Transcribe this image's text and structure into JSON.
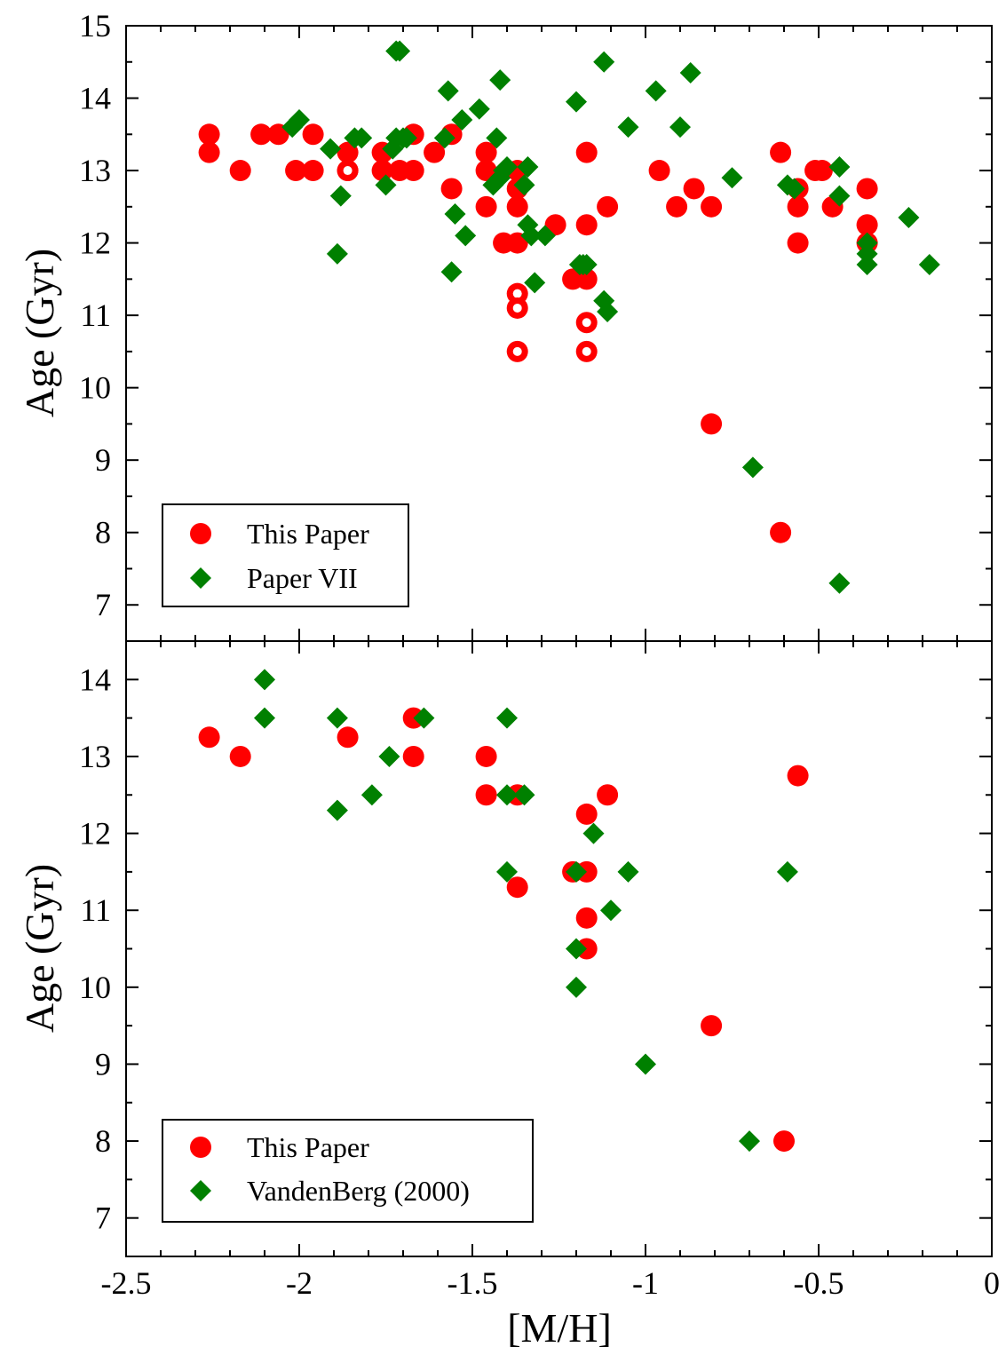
{
  "colors": {
    "this_paper": "#ff0000",
    "comparison": "#008000",
    "axis": "#000000",
    "background": "#ffffff"
  },
  "chart_data": [
    {
      "type": "scatter",
      "panel": "top",
      "title": "",
      "xlabel": "",
      "ylabel": "Age (Gyr)",
      "xlim": [
        -2.5,
        0
      ],
      "ylim": [
        6.5,
        15
      ],
      "yticks": [
        "7",
        "8",
        "9",
        "10",
        "11",
        "12",
        "13",
        "14",
        "15"
      ],
      "grid": false,
      "legend_position": "bottom-left",
      "series": [
        {
          "name": "This Paper",
          "marker": "circle",
          "color": "#ff0000",
          "points": [
            [
              -2.26,
              13.5
            ],
            [
              -2.26,
              13.25
            ],
            [
              -2.17,
              13.0
            ],
            [
              -2.11,
              13.5
            ],
            [
              -2.06,
              13.5
            ],
            [
              -2.01,
              13.0
            ],
            [
              -1.96,
              13.5
            ],
            [
              -1.96,
              13.0
            ],
            [
              -1.86,
              13.25
            ],
            [
              -1.86,
              13.0
            ],
            [
              -1.76,
              13.25
            ],
            [
              -1.76,
              13.0
            ],
            [
              -1.71,
              13.0
            ],
            [
              -1.67,
              13.5
            ],
            [
              -1.67,
              13.0
            ],
            [
              -1.61,
              13.25
            ],
            [
              -1.56,
              13.5
            ],
            [
              -1.56,
              12.75
            ],
            [
              -1.46,
              13.25
            ],
            [
              -1.46,
              13.0
            ],
            [
              -1.46,
              12.5
            ],
            [
              -1.41,
              12.0
            ],
            [
              -1.37,
              13.0
            ],
            [
              -1.37,
              12.75
            ],
            [
              -1.37,
              12.5
            ],
            [
              -1.37,
              12.0
            ],
            [
              -1.26,
              12.25
            ],
            [
              -1.21,
              11.5
            ],
            [
              -1.17,
              13.25
            ],
            [
              -1.17,
              12.25
            ],
            [
              -1.17,
              11.5
            ],
            [
              -1.11,
              12.5
            ],
            [
              -0.96,
              13.0
            ],
            [
              -0.91,
              12.5
            ],
            [
              -0.86,
              12.75
            ],
            [
              -0.81,
              12.5
            ],
            [
              -0.81,
              9.5
            ],
            [
              -0.61,
              13.25
            ],
            [
              -0.61,
              8.0
            ],
            [
              -0.56,
              12.75
            ],
            [
              -0.56,
              12.5
            ],
            [
              -0.56,
              12.0
            ],
            [
              -0.51,
              13.0
            ],
            [
              -0.49,
              13.0
            ],
            [
              -0.46,
              12.5
            ],
            [
              -0.36,
              12.75
            ],
            [
              -0.36,
              12.25
            ],
            [
              -0.36,
              12.0
            ]
          ]
        },
        {
          "name": "This Paper (open)",
          "marker": "open-circle",
          "color": "#ff0000",
          "points": [
            [
              -1.86,
              13.0
            ],
            [
              -1.37,
              11.3
            ],
            [
              -1.37,
              11.1
            ],
            [
              -1.37,
              10.5
            ],
            [
              -1.17,
              10.9
            ],
            [
              -1.17,
              10.5
            ]
          ]
        },
        {
          "name": "Paper VII",
          "marker": "diamond",
          "color": "#008000",
          "points": [
            [
              -2.02,
              13.6
            ],
            [
              -2.0,
              13.7
            ],
            [
              -1.91,
              13.3
            ],
            [
              -1.88,
              12.65
            ],
            [
              -1.89,
              11.85
            ],
            [
              -1.84,
              13.45
            ],
            [
              -1.82,
              13.45
            ],
            [
              -1.75,
              12.8
            ],
            [
              -1.73,
              13.3
            ],
            [
              -1.72,
              13.45
            ],
            [
              -1.72,
              14.65
            ],
            [
              -1.71,
              14.65
            ],
            [
              -1.7,
              13.45
            ],
            [
              -1.69,
              13.45
            ],
            [
              -1.58,
              13.45
            ],
            [
              -1.57,
              14.1
            ],
            [
              -1.56,
              11.6
            ],
            [
              -1.55,
              12.4
            ],
            [
              -1.53,
              13.7
            ],
            [
              -1.52,
              12.1
            ],
            [
              -1.48,
              13.85
            ],
            [
              -1.43,
              13.45
            ],
            [
              -1.42,
              14.25
            ],
            [
              -1.44,
              12.8
            ],
            [
              -1.42,
              12.9
            ],
            [
              -1.41,
              13.0
            ],
            [
              -1.4,
              13.05
            ],
            [
              -1.35,
              12.8
            ],
            [
              -1.34,
              13.05
            ],
            [
              -1.34,
              12.25
            ],
            [
              -1.33,
              12.1
            ],
            [
              -1.32,
              11.45
            ],
            [
              -1.29,
              12.1
            ],
            [
              -1.2,
              13.95
            ],
            [
              -1.19,
              11.7
            ],
            [
              -1.18,
              11.7
            ],
            [
              -1.17,
              11.7
            ],
            [
              -1.12,
              14.5
            ],
            [
              -1.12,
              11.2
            ],
            [
              -1.11,
              11.05
            ],
            [
              -1.05,
              13.6
            ],
            [
              -0.97,
              14.1
            ],
            [
              -0.9,
              13.6
            ],
            [
              -0.87,
              14.35
            ],
            [
              -0.75,
              12.9
            ],
            [
              -0.69,
              8.9
            ],
            [
              -0.59,
              12.8
            ],
            [
              -0.57,
              12.75
            ],
            [
              -0.44,
              13.05
            ],
            [
              -0.44,
              12.65
            ],
            [
              -0.44,
              7.3
            ],
            [
              -0.36,
              12.0
            ],
            [
              -0.36,
              11.85
            ],
            [
              -0.36,
              11.7
            ],
            [
              -0.24,
              12.35
            ],
            [
              -0.18,
              11.7
            ]
          ]
        }
      ],
      "legend": [
        {
          "label": "This Paper",
          "marker": "circle",
          "color": "#ff0000"
        },
        {
          "label": "Paper VII",
          "marker": "diamond",
          "color": "#008000"
        }
      ]
    },
    {
      "type": "scatter",
      "panel": "bottom",
      "title": "",
      "xlabel": "[M/H]",
      "ylabel": "Age (Gyr)",
      "xlim": [
        -2.5,
        0
      ],
      "ylim": [
        6.5,
        14.5
      ],
      "xticks": [
        "-2.5",
        "-2",
        "-1.5",
        "-1",
        "-0.5",
        "0"
      ],
      "yticks": [
        "7",
        "8",
        "9",
        "10",
        "11",
        "12",
        "13",
        "14"
      ],
      "grid": false,
      "legend_position": "bottom-left",
      "series": [
        {
          "name": "This Paper",
          "marker": "circle",
          "color": "#ff0000",
          "points": [
            [
              -2.26,
              13.25
            ],
            [
              -2.17,
              13.0
            ],
            [
              -1.86,
              13.25
            ],
            [
              -1.67,
              13.5
            ],
            [
              -1.67,
              13.0
            ],
            [
              -1.46,
              13.0
            ],
            [
              -1.46,
              12.5
            ],
            [
              -1.37,
              12.5
            ],
            [
              -1.37,
              11.3
            ],
            [
              -1.21,
              11.5
            ],
            [
              -1.17,
              12.25
            ],
            [
              -1.17,
              11.5
            ],
            [
              -1.17,
              10.9
            ],
            [
              -1.17,
              10.5
            ],
            [
              -1.11,
              12.5
            ],
            [
              -0.81,
              9.5
            ],
            [
              -0.6,
              8.0
            ],
            [
              -0.56,
              12.75
            ]
          ]
        },
        {
          "name": "VandenBerg (2000)",
          "marker": "diamond",
          "color": "#008000",
          "points": [
            [
              -2.1,
              14.0
            ],
            [
              -2.1,
              13.5
            ],
            [
              -1.89,
              13.5
            ],
            [
              -1.89,
              12.3
            ],
            [
              -1.79,
              12.5
            ],
            [
              -1.74,
              13.0
            ],
            [
              -1.64,
              13.5
            ],
            [
              -1.4,
              13.5
            ],
            [
              -1.4,
              12.5
            ],
            [
              -1.4,
              11.5
            ],
            [
              -1.35,
              12.5
            ],
            [
              -1.2,
              11.5
            ],
            [
              -1.2,
              10.5
            ],
            [
              -1.2,
              10.0
            ],
            [
              -1.15,
              12.0
            ],
            [
              -1.1,
              11.0
            ],
            [
              -1.05,
              11.5
            ],
            [
              -1.0,
              9.0
            ],
            [
              -0.7,
              8.0
            ],
            [
              -0.59,
              11.5
            ]
          ]
        }
      ],
      "legend": [
        {
          "label": "This Paper",
          "marker": "circle",
          "color": "#ff0000"
        },
        {
          "label": "VandenBerg (2000)",
          "marker": "diamond",
          "color": "#008000"
        }
      ]
    }
  ]
}
